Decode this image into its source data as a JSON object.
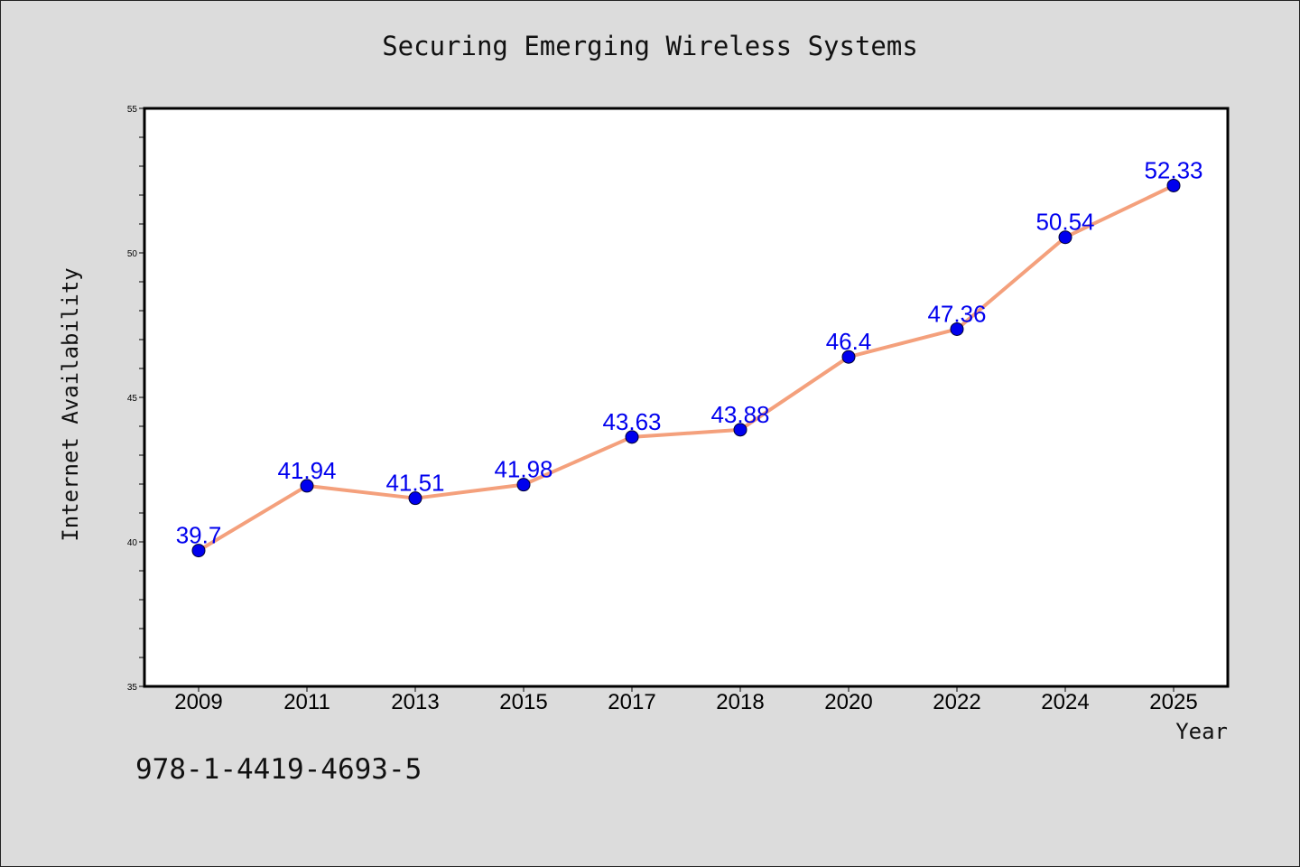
{
  "chart_data": {
    "type": "line",
    "title": "Securing Emerging Wireless Systems",
    "xlabel": "Year",
    "ylabel": "Internet Availability",
    "categories": [
      "2009",
      "2011",
      "2013",
      "2015",
      "2017",
      "2018",
      "2020",
      "2022",
      "2024",
      "2025"
    ],
    "series": [
      {
        "values": [
          39.7,
          41.94,
          41.51,
          41.98,
          43.63,
          43.88,
          46.4,
          47.36,
          50.54,
          52.33
        ],
        "data_labels": [
          "39.7",
          "41.94",
          "41.51",
          "41.98",
          "43.63",
          "43.88",
          "46.4",
          "47.36",
          "50.54",
          "52.33"
        ]
      }
    ],
    "ylim": [
      35,
      55
    ],
    "yticks": [
      "35",
      "40",
      "45",
      "50",
      "55"
    ],
    "grid": false,
    "colors": {
      "line": "#f4a07c",
      "marker": "#0000ee",
      "data_label": "#0000ee",
      "background": "#dcdcdc",
      "plot_area": "#ffffff"
    }
  },
  "footer": {
    "isbn": "978-1-4419-4693-5"
  }
}
